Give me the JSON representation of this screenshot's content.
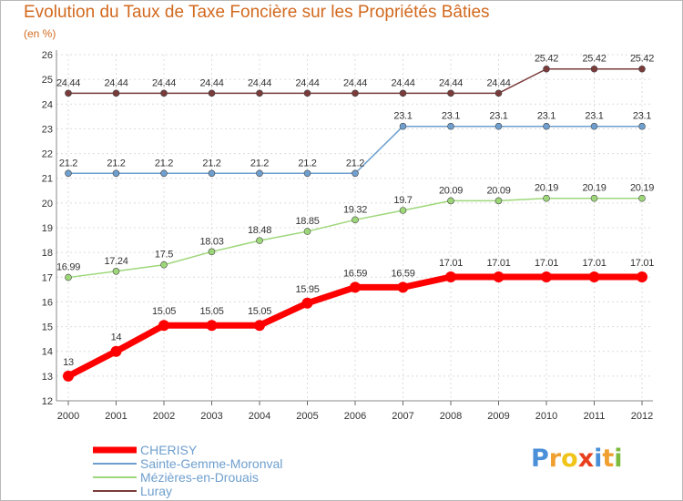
{
  "chart_data": {
    "type": "line",
    "title": "Evolution du Taux de Taxe Foncière sur les Propriétés Bâties",
    "unit_label": "(en %)",
    "xlabel": "",
    "ylabel": "(en %)",
    "x": [
      "2000",
      "2001",
      "2002",
      "2003",
      "2004",
      "2005",
      "2006",
      "2007",
      "2008",
      "2009",
      "2010",
      "2011",
      "2012"
    ],
    "ylim": [
      12,
      26
    ],
    "y_ticks": [
      12,
      13,
      14,
      15,
      16,
      17,
      18,
      19,
      20,
      21,
      22,
      23,
      24,
      25,
      26
    ],
    "grid": true,
    "legend_position": "bottom-left",
    "series": [
      {
        "name": "CHERISY",
        "color": "#ff0000",
        "values": [
          13,
          14,
          15.05,
          15.05,
          15.05,
          15.95,
          16.59,
          16.59,
          17.01,
          17.01,
          17.01,
          17.01,
          17.01
        ],
        "labels": [
          "13",
          "14",
          "15.05",
          "15.05",
          "15.05",
          "15.95",
          "16.59",
          "16.59",
          "17.01",
          "17.01",
          "17.01",
          "17.01",
          "17.01"
        ]
      },
      {
        "name": "Sainte-Gemme-Moronval",
        "color": "#6e9fce",
        "values": [
          21.2,
          21.2,
          21.2,
          21.2,
          21.2,
          21.2,
          21.2,
          23.1,
          23.1,
          23.1,
          23.1,
          23.1,
          23.1
        ],
        "labels": [
          "21.2",
          "21.2",
          "21.2",
          "21.2",
          "21.2",
          "21.2",
          "21.2",
          "23.1",
          "23.1",
          "23.1",
          "23.1",
          "23.1",
          "23.1"
        ]
      },
      {
        "name": "Mézières-en-Drouais",
        "color": "#9ed77a",
        "values": [
          16.99,
          17.24,
          17.5,
          18.03,
          18.48,
          18.85,
          19.32,
          19.7,
          20.09,
          20.09,
          20.19,
          20.19,
          20.19
        ],
        "labels": [
          "16.99",
          "17.24",
          "17.5",
          "18.03",
          "18.48",
          "18.85",
          "19.32",
          "19.7",
          "20.09",
          "20.09",
          "20.19",
          "20.19",
          "20.19"
        ]
      },
      {
        "name": "Luray",
        "color": "#7a3b3b",
        "values": [
          24.44,
          24.44,
          24.44,
          24.44,
          24.44,
          24.44,
          24.44,
          24.44,
          24.44,
          24.44,
          25.42,
          25.42,
          25.42
        ],
        "labels": [
          "24.44",
          "24.44",
          "24.44",
          "24.44",
          "24.44",
          "24.44",
          "24.44",
          "24.44",
          "24.44",
          "24.44",
          "25.42",
          "25.42",
          "25.42"
        ]
      }
    ]
  },
  "logo": {
    "letters": [
      "P",
      "r",
      "o",
      "x",
      "i",
      "t",
      "i"
    ],
    "colors": [
      "#4a90d9",
      "#f0a030",
      "#f0c419",
      "#e8401c",
      "#4a90d9",
      "#f0a030",
      "#7cbb3e"
    ]
  }
}
